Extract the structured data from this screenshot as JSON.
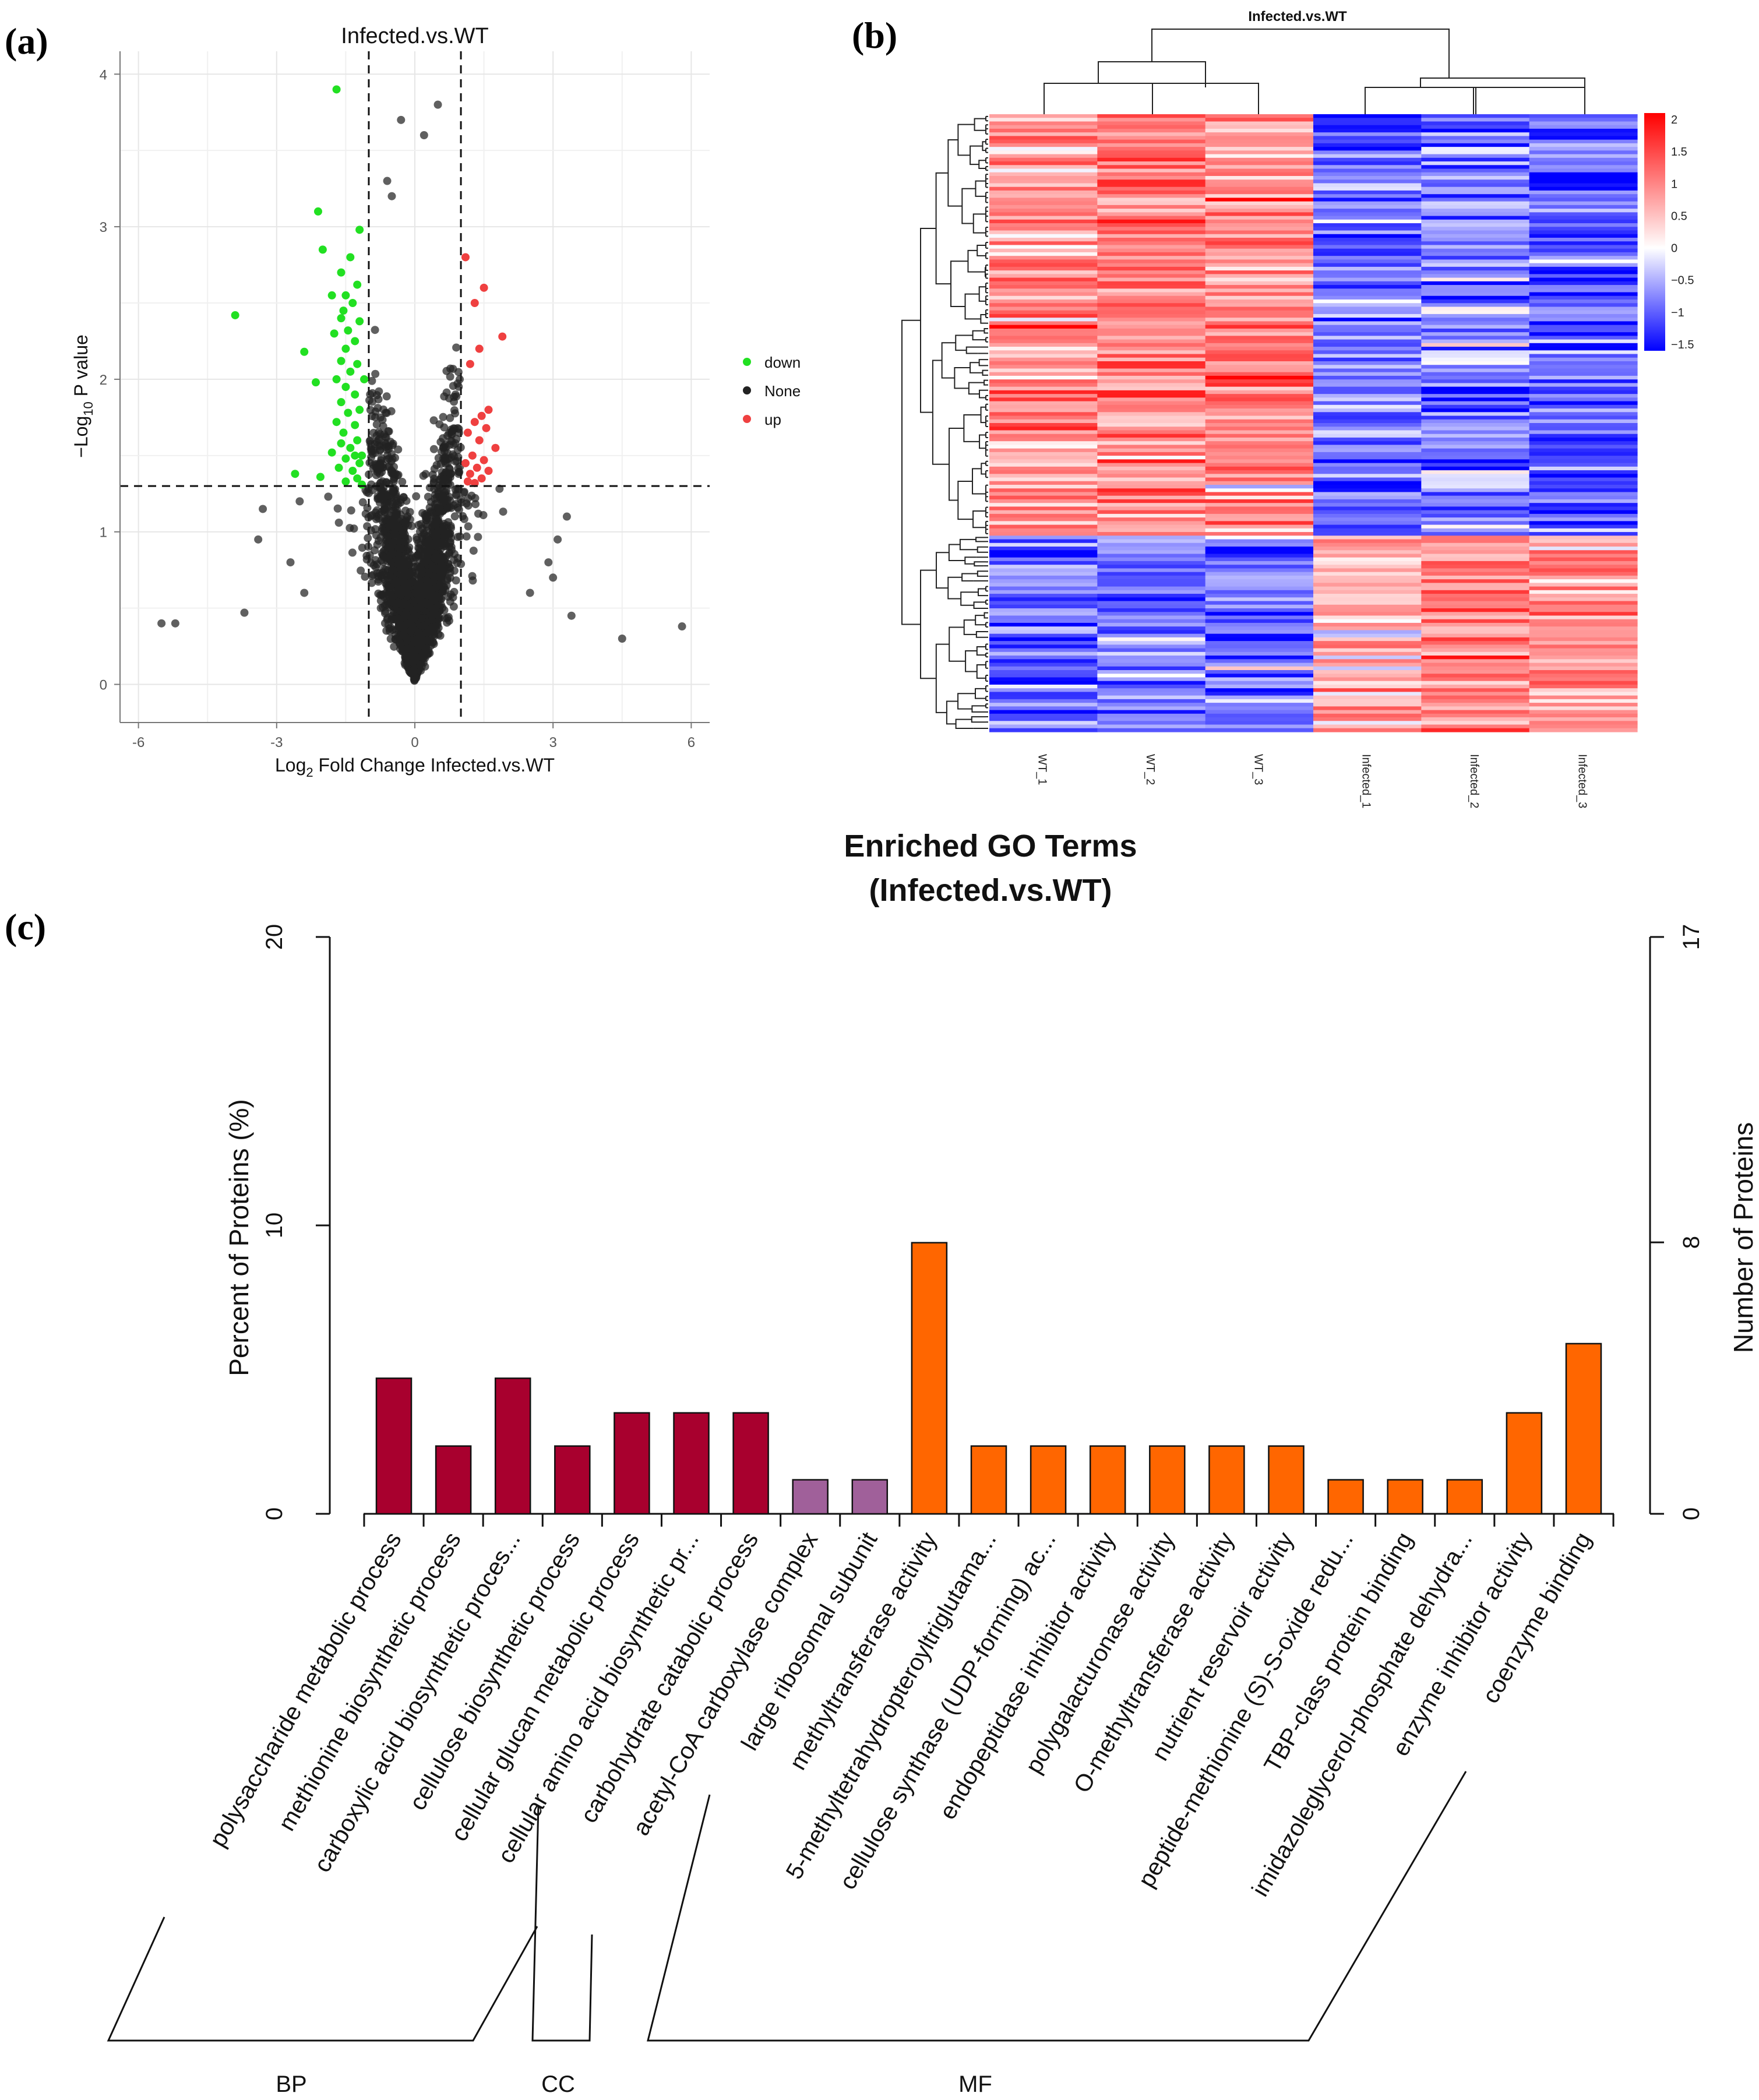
{
  "panel_labels": {
    "a": "(a)",
    "b": "(b)",
    "c": "(c)"
  },
  "colors": {
    "down": "#22e022",
    "none": "#222222",
    "up": "#ef4040",
    "heat_high": "#ff0000",
    "heat_mid": "#ffffff",
    "heat_low": "#0000ff",
    "bp": "#a8002e",
    "cc": "#a0609a",
    "mf": "#ff6600"
  },
  "chart_data": [
    {
      "id": "a",
      "type": "scatter",
      "title": "Infected.vs.WT",
      "xlabel_main": "Log",
      "xlabel_sub": "2",
      "xlabel_rest": " Fold Change Infected.vs.WT",
      "ylabel_main": "−Log",
      "ylabel_sub": "10",
      "ylabel_rest": " P value",
      "xlim": [
        -6.4,
        6.4
      ],
      "ylim": [
        -0.25,
        4.15
      ],
      "x_ticks": [
        -6,
        -3,
        0,
        3,
        6
      ],
      "y_ticks": [
        0,
        1,
        2,
        3,
        4
      ],
      "x_tick_labels": [
        "-6",
        "-3",
        "0",
        "3",
        "6"
      ],
      "y_tick_labels": [
        "0",
        "1",
        "2",
        "3",
        "4"
      ],
      "fc_threshold": 1,
      "p_threshold_log": 1.3,
      "legend": [
        "down",
        "None",
        "up"
      ],
      "approx_point_count_none": 2500,
      "series": [
        {
          "name": "down",
          "points": [
            [
              -1.7,
              3.9
            ],
            [
              -2.1,
              3.1
            ],
            [
              -2.0,
              2.85
            ],
            [
              -1.2,
              2.98
            ],
            [
              -1.4,
              2.8
            ],
            [
              -1.6,
              2.7
            ],
            [
              -1.25,
              2.62
            ],
            [
              -1.5,
              2.55
            ],
            [
              -1.8,
              2.55
            ],
            [
              -1.35,
              2.5
            ],
            [
              -1.55,
              2.45
            ],
            [
              -1.6,
              2.4
            ],
            [
              -1.2,
              2.38
            ],
            [
              -1.45,
              2.32
            ],
            [
              -1.75,
              2.3
            ],
            [
              -1.5,
              2.2
            ],
            [
              -1.3,
              2.25
            ],
            [
              -2.4,
              2.18
            ],
            [
              -1.6,
              2.12
            ],
            [
              -1.25,
              2.1
            ],
            [
              -1.4,
              2.05
            ],
            [
              -1.7,
              2.0
            ],
            [
              -2.15,
              1.98
            ],
            [
              -1.5,
              1.95
            ],
            [
              -1.3,
              1.9
            ],
            [
              -1.6,
              1.85
            ],
            [
              -1.2,
              1.8
            ],
            [
              -1.45,
              1.78
            ],
            [
              -1.7,
              1.72
            ],
            [
              -1.3,
              1.7
            ],
            [
              -1.55,
              1.65
            ],
            [
              -1.25,
              1.6
            ],
            [
              -1.6,
              1.58
            ],
            [
              -1.4,
              1.55
            ],
            [
              -1.8,
              1.52
            ],
            [
              -1.3,
              1.5
            ],
            [
              -1.5,
              1.48
            ],
            [
              -1.2,
              1.45
            ],
            [
              -1.65,
              1.42
            ],
            [
              -1.35,
              1.4
            ],
            [
              -2.6,
              1.38
            ],
            [
              -2.05,
              1.36
            ],
            [
              -1.25,
              1.35
            ],
            [
              -1.5,
              1.33
            ],
            [
              -1.15,
              1.31
            ],
            [
              -3.9,
              2.42
            ],
            [
              -1.1,
              2.0
            ],
            [
              -1.15,
              1.5
            ]
          ]
        },
        {
          "name": "up",
          "points": [
            [
              1.1,
              2.8
            ],
            [
              1.5,
              2.6
            ],
            [
              1.3,
              2.5
            ],
            [
              1.9,
              2.28
            ],
            [
              1.4,
              2.2
            ],
            [
              1.2,
              2.1
            ],
            [
              1.6,
              1.8
            ],
            [
              1.45,
              1.76
            ],
            [
              1.3,
              1.72
            ],
            [
              1.55,
              1.68
            ],
            [
              1.15,
              1.65
            ],
            [
              1.4,
              1.6
            ],
            [
              1.75,
              1.55
            ],
            [
              1.25,
              1.5
            ],
            [
              1.5,
              1.47
            ],
            [
              1.1,
              1.45
            ],
            [
              1.35,
              1.42
            ],
            [
              1.6,
              1.4
            ],
            [
              1.2,
              1.38
            ],
            [
              1.45,
              1.35
            ],
            [
              1.15,
              1.33
            ],
            [
              1.3,
              1.32
            ]
          ]
        }
      ]
    },
    {
      "id": "b",
      "type": "heatmap",
      "title": "Infected.vs.WT",
      "columns": [
        "WT_1",
        "WT_2",
        "WT_3",
        "Infected_1",
        "Infected_2",
        "Infected_3"
      ],
      "color_scale": {
        "min": -1.6,
        "max": 2.1
      },
      "colorbar_ticks": [
        2,
        1.5,
        1,
        0.5,
        0,
        -0.5,
        -1,
        -1.5
      ],
      "colorbar_tick_labels": [
        "2",
        "1.5",
        "1",
        "0.5",
        "0",
        "−0.5",
        "−1",
        "−1.5"
      ],
      "row_count": 170,
      "cluster_1_rows": 116,
      "column_means": {
        "cluster_1": [
          0.9,
          0.95,
          0.9,
          -0.9,
          -0.8,
          -1.1
        ],
        "cluster_2": [
          -0.9,
          -0.8,
          -0.8,
          0.6,
          1.0,
          0.9
        ]
      }
    },
    {
      "id": "c",
      "type": "bar",
      "title": "Enriched GO Terms",
      "subtitle": "(Infected.vs.WT)",
      "ylabel": "Percent of Proteins (%)",
      "ylabel_right": "Number of Proteins",
      "ylim": [
        0,
        20
      ],
      "y_ticks": [
        0,
        10,
        20
      ],
      "y_tick_labels": [
        "0",
        "10",
        "20"
      ],
      "right_ylim": [
        0,
        17
      ],
      "right_y_ticks": [
        0,
        8,
        17
      ],
      "right_y_tick_labels": [
        "0",
        "8",
        "17"
      ],
      "categories": [
        "polysaccharide metabolic process",
        "methionine biosynthetic process",
        "carboxylic acid biosynthetic proces...",
        "cellulose biosynthetic process",
        "cellular glucan metabolic process",
        "cellular amino acid biosynthetic pr...",
        "carbohydrate catabolic process",
        "acetyl-CoA carboxylase complex",
        "large ribosomal subunit",
        "methyltransferase activity",
        "5-methyltetrahydropteroyltriglutama...",
        "cellulose synthase (UDP-forming) ac...",
        "endopeptidase inhibitor activity",
        "polygalacturonase activity",
        "O-methyltransferase activity",
        "nutrient reservoir activity",
        "peptide-methionine (S)-S-oxide redu...",
        "TBP-class protein binding",
        "imidazoleglycerol-phosphate dehydra...",
        "enzyme inhibitor activity",
        "coenzyme binding"
      ],
      "values": [
        4.7,
        2.35,
        4.7,
        2.35,
        3.5,
        3.5,
        3.5,
        1.18,
        1.18,
        9.4,
        2.35,
        2.35,
        2.35,
        2.35,
        2.35,
        2.35,
        1.18,
        1.18,
        1.18,
        3.5,
        5.9
      ],
      "group_of": [
        "BP",
        "BP",
        "BP",
        "BP",
        "BP",
        "BP",
        "BP",
        "CC",
        "CC",
        "MF",
        "MF",
        "MF",
        "MF",
        "MF",
        "MF",
        "MF",
        "MF",
        "MF",
        "MF",
        "MF",
        "MF"
      ],
      "groups": [
        "BP",
        "CC",
        "MF"
      ]
    }
  ]
}
